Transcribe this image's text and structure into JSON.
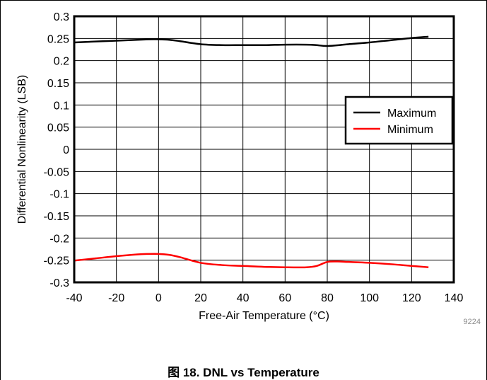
{
  "figure_id": "9224",
  "caption": "图 18. DNL vs Temperature",
  "colors": {
    "maximum": "#000000",
    "minimum": "#ff0000",
    "grid": "#000000"
  },
  "chart_data": {
    "type": "line",
    "xlabel": "Free-Air Temperature (°C)",
    "ylabel": "Differential Nonlinearity (LSB)",
    "xlim": [
      -40,
      140
    ],
    "ylim": [
      -0.3,
      0.3
    ],
    "xticks": [
      "-40",
      "-20",
      "0",
      "20",
      "40",
      "60",
      "80",
      "100",
      "120",
      "140"
    ],
    "yticks": [
      "0.3",
      "0.25",
      "0.2",
      "0.15",
      "0.1",
      "0.05",
      "0",
      "-0.05",
      "-0.1",
      "-0.15",
      "-0.2",
      "-0.25",
      "-0.3"
    ],
    "grid": true,
    "legend_position": "right",
    "series": [
      {
        "name": "Maximum",
        "color": "#000000",
        "x": [
          -40,
          -20,
          -5,
          0,
          5,
          10,
          20,
          30,
          40,
          50,
          60,
          70,
          75,
          80,
          90,
          100,
          110,
          120,
          128
        ],
        "y": [
          0.241,
          0.245,
          0.248,
          0.248,
          0.247,
          0.244,
          0.237,
          0.235,
          0.235,
          0.235,
          0.236,
          0.236,
          0.235,
          0.233,
          0.237,
          0.241,
          0.246,
          0.251,
          0.254
        ]
      },
      {
        "name": "Minimum",
        "color": "#ff0000",
        "x": [
          -40,
          -30,
          -20,
          -10,
          -5,
          0,
          5,
          10,
          20,
          30,
          40,
          50,
          60,
          70,
          75,
          80,
          85,
          90,
          100,
          110,
          120,
          128
        ],
        "y": [
          -0.251,
          -0.246,
          -0.241,
          -0.237,
          -0.236,
          -0.236,
          -0.238,
          -0.243,
          -0.256,
          -0.261,
          -0.263,
          -0.265,
          -0.266,
          -0.266,
          -0.263,
          -0.254,
          -0.253,
          -0.254,
          -0.256,
          -0.259,
          -0.263,
          -0.266
        ]
      }
    ]
  }
}
